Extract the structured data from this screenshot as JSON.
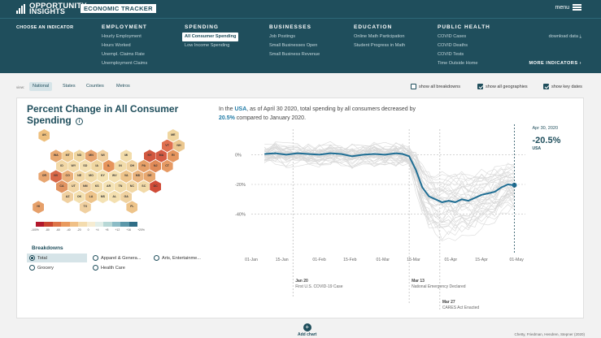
{
  "brand": {
    "line1": "OPPORTUNITY",
    "line2": "INSIGHTS",
    "tracker": "ECONOMIC TRACKER",
    "menu": "menu"
  },
  "nav": {
    "choose": "CHOOSE AN INDICATOR",
    "columns": [
      {
        "head": "EMPLOYMENT",
        "items": [
          "Hourly Employment",
          "Hours Worked",
          "Unempl. Claims Rate",
          "Unemployment Claims"
        ]
      },
      {
        "head": "SPENDING",
        "items": [
          "All Consumer Spending",
          "Low Income Spending"
        ]
      },
      {
        "head": "BUSINESSES",
        "items": [
          "Job Postings",
          "Small Businesses Open",
          "Small Business Revenue"
        ]
      },
      {
        "head": "EDUCATION",
        "items": [
          "Online Math Participation",
          "Student Progress in Math"
        ]
      },
      {
        "head": "PUBLIC HEALTH",
        "items": [
          "COVID Cases",
          "COVID Deaths",
          "COVID Tests",
          "Time Outside Home"
        ]
      }
    ],
    "active_item": "All Consumer Spending",
    "download": "download data",
    "more": "MORE INDICATORS"
  },
  "view": {
    "label": "view:",
    "tabs": [
      "National",
      "States",
      "Counties",
      "Metros"
    ],
    "active_tab": "National",
    "options": [
      {
        "label": "show all breakdowns",
        "checked": false
      },
      {
        "label": "show all geographies",
        "checked": true
      },
      {
        "label": "show key dates",
        "checked": true
      }
    ]
  },
  "card": {
    "title": "Percent Change in All Consumer Spending",
    "summary": {
      "pre": "In the ",
      "place": "USA",
      "mid": ", as of April 30 2020, total spending by all consumers decreased by",
      "value": "20.5%",
      "post": " compared to January 2020."
    },
    "hexmap": [
      {
        "st": "AK",
        "color": "#eec07e"
      },
      {
        "st": "ME",
        "color": "#f0d6a0"
      },
      {
        "st": "VT",
        "color": "#e07050"
      },
      {
        "st": "NH",
        "color": "#ecc890"
      },
      {
        "st": "WA",
        "color": "#e8a870"
      },
      {
        "st": "MT",
        "color": "#f0cc94"
      },
      {
        "st": "ND",
        "color": "#f0d6a0"
      },
      {
        "st": "MN",
        "color": "#e8a470"
      },
      {
        "st": "WI",
        "color": "#f0d0a0"
      },
      {
        "st": "MI",
        "color": "#f2dcaa"
      },
      {
        "st": "NY",
        "color": "#d25840"
      },
      {
        "st": "MA",
        "color": "#d65c44"
      },
      {
        "st": "RI",
        "color": "#e5965f"
      },
      {
        "st": "ID",
        "color": "#f2d8a6"
      },
      {
        "st": "WY",
        "color": "#f3dcaa"
      },
      {
        "st": "SD",
        "color": "#f4e0b0"
      },
      {
        "st": "IA",
        "color": "#f0d6a0"
      },
      {
        "st": "IL",
        "color": "#e6945c"
      },
      {
        "st": "IN",
        "color": "#f2dcaa"
      },
      {
        "st": "OH",
        "color": "#f0d2a0"
      },
      {
        "st": "PA",
        "color": "#e6a068"
      },
      {
        "st": "NJ",
        "color": "#e08a58"
      },
      {
        "st": "CT",
        "color": "#e69a64"
      },
      {
        "st": "OR",
        "color": "#e8a670"
      },
      {
        "st": "NV",
        "color": "#d86848"
      },
      {
        "st": "CO",
        "color": "#eab07a"
      },
      {
        "st": "NE",
        "color": "#f2d8a6"
      },
      {
        "st": "MO",
        "color": "#f2dcaa"
      },
      {
        "st": "KY",
        "color": "#f4e2b2"
      },
      {
        "st": "WV",
        "color": "#f4e0b0"
      },
      {
        "st": "VA",
        "color": "#eec48a"
      },
      {
        "st": "MD",
        "color": "#eab47e"
      },
      {
        "st": "DE",
        "color": "#e8a870"
      },
      {
        "st": "CA",
        "color": "#e29462"
      },
      {
        "st": "UT",
        "color": "#f2d6a4"
      },
      {
        "st": "NM",
        "color": "#f0d0a0"
      },
      {
        "st": "KS",
        "color": "#f2dcaa"
      },
      {
        "st": "AR",
        "color": "#f4e2b4"
      },
      {
        "st": "TN",
        "color": "#f2dcaa"
      },
      {
        "st": "NC",
        "color": "#f2d8a6"
      },
      {
        "st": "SC",
        "color": "#f2daa8"
      },
      {
        "st": "DC",
        "color": "#d04c38"
      },
      {
        "st": "AZ",
        "color": "#f0d0a0"
      },
      {
        "st": "OK",
        "color": "#f4e0b0"
      },
      {
        "st": "LA",
        "color": "#eec48a"
      },
      {
        "st": "MS",
        "color": "#f4e2b4"
      },
      {
        "st": "AL",
        "color": "#f4e0b0"
      },
      {
        "st": "GA",
        "color": "#f0d2a0"
      },
      {
        "st": "HI",
        "color": "#e6a06a"
      },
      {
        "st": "TX",
        "color": "#f0d0a0"
      },
      {
        "st": "FL",
        "color": "#eec48a"
      }
    ],
    "legend": {
      "colors": [
        "#b2182b",
        "#c9452f",
        "#dd7447",
        "#e99a5e",
        "#f0c086",
        "#f4dcae",
        "#f6ecd2",
        "#e2eee8",
        "#b8d8d6",
        "#8cbcc6",
        "#5c98aa",
        "#2f6d86"
      ],
      "ticks": [
        "-100%",
        "-80",
        "-60",
        "-40",
        "-20",
        "0",
        "+4",
        "+8",
        "+12",
        "+16",
        "+20%"
      ]
    },
    "breakdowns": {
      "title": "Breakdowns",
      "items": [
        "Total",
        "Apparel & Genera...",
        "Arts, Entertainme...",
        "Grocery",
        "Health Care"
      ],
      "active": "Total"
    }
  },
  "chart_data": {
    "type": "line",
    "x_ticks": [
      "01-Jan",
      "15-Jan",
      "01-Feb",
      "15-Feb",
      "01-Mar",
      "15-Mar",
      "01-Apr",
      "15-Apr",
      "01-May"
    ],
    "y_ticks": [
      "0%",
      "-20%",
      "-40%"
    ],
    "ylim": [
      -55,
      15
    ],
    "xlim": [
      "2020-01-01",
      "2020-05-05"
    ],
    "series": [
      {
        "name": "USA",
        "color": "#1f6e94",
        "x": [
          "2020-01-07",
          "2020-01-12",
          "2020-01-17",
          "2020-01-22",
          "2020-01-27",
          "2020-02-01",
          "2020-02-06",
          "2020-02-11",
          "2020-02-16",
          "2020-02-21",
          "2020-02-26",
          "2020-03-02",
          "2020-03-07",
          "2020-03-10",
          "2020-03-13",
          "2020-03-16",
          "2020-03-19",
          "2020-03-22",
          "2020-03-25",
          "2020-03-28",
          "2020-03-31",
          "2020-04-03",
          "2020-04-06",
          "2020-04-09",
          "2020-04-12",
          "2020-04-15",
          "2020-04-18",
          "2020-04-21",
          "2020-04-24",
          "2020-04-27",
          "2020-04-30"
        ],
        "y": [
          0.5,
          1,
          0,
          1,
          0.5,
          0,
          1,
          0.5,
          -1,
          0,
          0.5,
          0,
          1,
          0.5,
          -1,
          -10,
          -22,
          -28,
          -30,
          -32,
          -31,
          -32,
          -30,
          -31,
          -29,
          -27,
          -26,
          -25,
          -22,
          -20,
          -20.5
        ]
      }
    ],
    "background_series_count": 40,
    "background_color": "#d9d9d9",
    "key_dates": [
      {
        "date": "2020-01-20",
        "label_date": "Jan 20",
        "label": "First U.S. COVID-19 Case"
      },
      {
        "date": "2020-03-13",
        "label_date": "Mar 13",
        "label": "National Emergency Declared"
      },
      {
        "date": "2020-03-27",
        "label_date": "Mar 27",
        "label": "CARES Act Enacted"
      }
    ],
    "callout": {
      "date": "Apr 30, 2020",
      "value": "-20.5%",
      "place": "USA"
    }
  },
  "footer": {
    "add_chart": "Add chart",
    "citation": "Chetty, Friedman, Hendren, Stepner (2020)"
  }
}
